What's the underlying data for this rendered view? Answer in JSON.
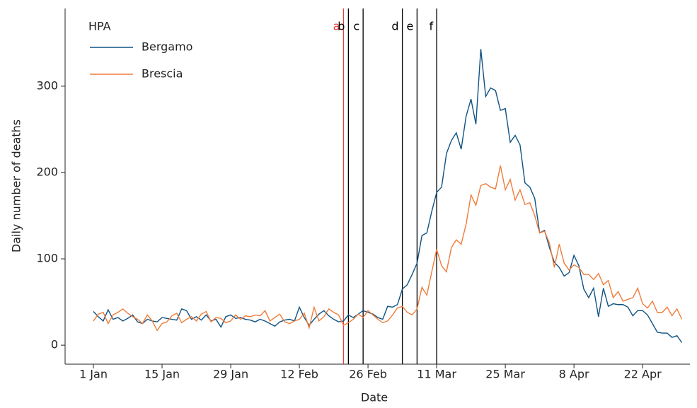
{
  "chart_data": {
    "type": "line",
    "categories": [
      "1 Jan",
      "2 Jan",
      "3 Jan",
      "4 Jan",
      "5 Jan",
      "6 Jan",
      "7 Jan",
      "8 Jan",
      "9 Jan",
      "10 Jan",
      "11 Jan",
      "12 Jan",
      "13 Jan",
      "14 Jan",
      "15 Jan",
      "16 Jan",
      "17 Jan",
      "18 Jan",
      "19 Jan",
      "20 Jan",
      "21 Jan",
      "22 Jan",
      "23 Jan",
      "24 Jan",
      "25 Jan",
      "26 Jan",
      "27 Jan",
      "28 Jan",
      "29 Jan",
      "30 Jan",
      "31 Jan",
      "1 Feb",
      "2 Feb",
      "3 Feb",
      "4 Feb",
      "5 Feb",
      "6 Feb",
      "7 Feb",
      "8 Feb",
      "9 Feb",
      "10 Feb",
      "11 Feb",
      "12 Feb",
      "13 Feb",
      "14 Feb",
      "15 Feb",
      "16 Feb",
      "17 Feb",
      "18 Feb",
      "19 Feb",
      "20 Feb",
      "21 Feb",
      "22 Feb",
      "23 Feb",
      "24 Feb",
      "25 Feb",
      "26 Feb",
      "27 Feb",
      "28 Feb",
      "29 Feb",
      "1 Mar",
      "2 Mar",
      "3 Mar",
      "4 Mar",
      "5 Mar",
      "6 Mar",
      "7 Mar",
      "8 Mar",
      "9 Mar",
      "10 Mar",
      "11 Mar",
      "12 Mar",
      "13 Mar",
      "14 Mar",
      "15 Mar",
      "16 Mar",
      "17 Mar",
      "18 Mar",
      "19 Mar",
      "20 Mar",
      "21 Mar",
      "22 Mar",
      "23 Mar",
      "24 Mar",
      "25 Mar",
      "26 Mar",
      "27 Mar",
      "28 Mar",
      "29 Mar",
      "30 Mar",
      "31 Mar",
      "1 Apr",
      "2 Apr",
      "3 Apr",
      "4 Apr",
      "5 Apr",
      "6 Apr",
      "7 Apr",
      "8 Apr",
      "9 Apr",
      "10 Apr",
      "11 Apr",
      "12 Apr",
      "13 Apr",
      "14 Apr",
      "15 Apr",
      "16 Apr",
      "17 Apr",
      "18 Apr",
      "19 Apr",
      "20 Apr",
      "21 Apr",
      "22 Apr",
      "23 Apr",
      "24 Apr",
      "25 Apr",
      "26 Apr",
      "27 Apr",
      "28 Apr",
      "29 Apr",
      "30 Apr"
    ],
    "series": [
      {
        "name": "Bergamo",
        "color": "#0f5384",
        "values": [
          39,
          33,
          28,
          41,
          30,
          32,
          28,
          31,
          35,
          27,
          25,
          30,
          28,
          27,
          32,
          31,
          30,
          29,
          42,
          40,
          30,
          33,
          29,
          35,
          28,
          30,
          21,
          33,
          35,
          31,
          32,
          30,
          29,
          27,
          30,
          28,
          25,
          22,
          27,
          29,
          30,
          28,
          44,
          32,
          23,
          30,
          36,
          40,
          34,
          30,
          27,
          28,
          35,
          32,
          36,
          40,
          38,
          36,
          32,
          30,
          45,
          44,
          47,
          65,
          70,
          82,
          95,
          127,
          130,
          155,
          177,
          183,
          222,
          237,
          246,
          227,
          265,
          285,
          256,
          343,
          288,
          298,
          295,
          272,
          274,
          235,
          243,
          232,
          188,
          183,
          170,
          130,
          133,
          113,
          96,
          90,
          80,
          84,
          104,
          92,
          65,
          55,
          66,
          33,
          66,
          45,
          48,
          47,
          47,
          44,
          34,
          40,
          40,
          35,
          25,
          15,
          14,
          14,
          9,
          11,
          3
        ]
      },
      {
        "name": "Brescia",
        "color": "#f07c3a",
        "values": [
          28,
          36,
          38,
          25,
          35,
          38,
          42,
          37,
          33,
          30,
          25,
          35,
          28,
          17,
          25,
          27,
          34,
          37,
          26,
          30,
          33,
          28,
          36,
          39,
          27,
          32,
          31,
          26,
          28,
          35,
          30,
          34,
          33,
          35,
          34,
          40,
          28,
          32,
          36,
          27,
          25,
          28,
          30,
          37,
          20,
          44,
          28,
          33,
          42,
          38,
          35,
          23,
          26,
          30,
          36,
          32,
          40,
          35,
          30,
          26,
          28,
          35,
          43,
          45,
          38,
          35,
          42,
          67,
          58,
          85,
          111,
          92,
          85,
          113,
          122,
          117,
          140,
          174,
          162,
          185,
          187,
          183,
          181,
          208,
          180,
          192,
          168,
          180,
          163,
          165,
          150,
          130,
          132,
          118,
          90,
          117,
          95,
          87,
          93,
          90,
          82,
          82,
          76,
          83,
          70,
          75,
          55,
          62,
          51,
          53,
          55,
          66,
          48,
          43,
          51,
          38,
          38,
          44,
          34,
          42,
          30
        ]
      }
    ],
    "legend_title": "HPA",
    "x_label": "Date",
    "y_label": "Daily number of deaths",
    "xticks": [
      "1 Jan",
      "15 Jan",
      "29 Jan",
      "12 Feb",
      "26 Feb",
      "11 Mar",
      "25 Mar",
      "8 Apr",
      "22 Apr"
    ],
    "ylim": [
      -22,
      390
    ],
    "yticks": [
      0,
      100,
      200,
      300
    ],
    "events": [
      {
        "label": "a",
        "x": "21 Feb",
        "color": "#e0403a"
      },
      {
        "label": "b",
        "x": "22 Feb",
        "color": "#000000"
      },
      {
        "label": "c",
        "x": "25 Feb",
        "color": "#000000"
      },
      {
        "label": "d",
        "x": "4 Mar",
        "color": "#000000"
      },
      {
        "label": "e",
        "x": "7 Mar",
        "color": "#000000"
      },
      {
        "label": "f",
        "x": "11 Mar",
        "color": "#000000"
      }
    ]
  }
}
